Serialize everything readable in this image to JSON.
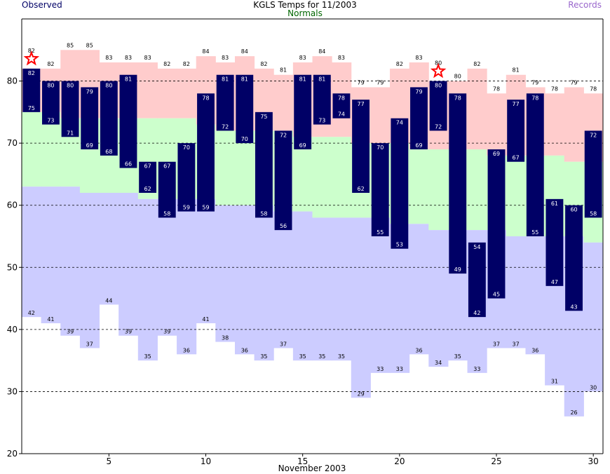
{
  "title": "KGLS Temps for 11/2003",
  "legend": {
    "observed": "Observed",
    "normals": "Normals",
    "records": "Records"
  },
  "colors": {
    "observed_bar": "#000066",
    "normal_band": "#ccffcc",
    "record_high_band": "#ffcccc",
    "record_low_band": "#ccccff",
    "observed_text": "#000066",
    "normals_text": "#006600",
    "records_text": "#9966cc",
    "record_star": "#ff0000"
  },
  "chart_data": {
    "type": "bar",
    "xlabel": "November 2003",
    "ylabel": "",
    "xlim": [
      1,
      30
    ],
    "ylim": [
      20,
      90
    ],
    "yticks": [
      20,
      30,
      40,
      50,
      60,
      70,
      80
    ],
    "xticks": [
      5,
      10,
      15,
      20,
      25,
      30
    ],
    "gridlines_y": [
      30,
      40,
      50,
      60,
      70,
      80
    ],
    "days": [
      1,
      2,
      3,
      4,
      5,
      6,
      7,
      8,
      9,
      10,
      11,
      12,
      13,
      14,
      15,
      16,
      17,
      18,
      19,
      20,
      21,
      22,
      23,
      24,
      25,
      26,
      27,
      28,
      29,
      30
    ],
    "observed_high": [
      82,
      80,
      80,
      79,
      80,
      81,
      67,
      67,
      70,
      78,
      81,
      81,
      75,
      72,
      81,
      81,
      78,
      77,
      70,
      74,
      79,
      80,
      78,
      54,
      69,
      77,
      78,
      61,
      60,
      72
    ],
    "observed_low": [
      75,
      73,
      71,
      69,
      68,
      66,
      62,
      58,
      59,
      59,
      72,
      70,
      58,
      56,
      69,
      73,
      74,
      62,
      55,
      53,
      69,
      72,
      49,
      42,
      45,
      67,
      55,
      47,
      43,
      58
    ],
    "normal_high": [
      75,
      75,
      74,
      74,
      74,
      74,
      74,
      74,
      74,
      73,
      72,
      72,
      72,
      72,
      71,
      71,
      71,
      70,
      70,
      70,
      69,
      69,
      69,
      69,
      68,
      68,
      68,
      68,
      67,
      67
    ],
    "normal_low": [
      63,
      63,
      63,
      62,
      62,
      62,
      61,
      61,
      61,
      61,
      60,
      60,
      60,
      59,
      59,
      58,
      58,
      58,
      58,
      57,
      57,
      56,
      56,
      56,
      56,
      55,
      55,
      55,
      55,
      54
    ],
    "record_high": [
      82,
      82,
      85,
      85,
      83,
      83,
      83,
      82,
      82,
      84,
      83,
      84,
      82,
      81,
      83,
      84,
      83,
      79,
      79,
      82,
      83,
      80,
      80,
      82,
      78,
      81,
      79,
      78,
      79,
      78
    ],
    "record_low": [
      42,
      41,
      39,
      37,
      44,
      39,
      35,
      39,
      36,
      41,
      38,
      36,
      35,
      37,
      35,
      35,
      35,
      29,
      33,
      33,
      36,
      34,
      35,
      33,
      37,
      37,
      36,
      31,
      26,
      30
    ],
    "record_set_days": [
      1,
      22
    ]
  }
}
